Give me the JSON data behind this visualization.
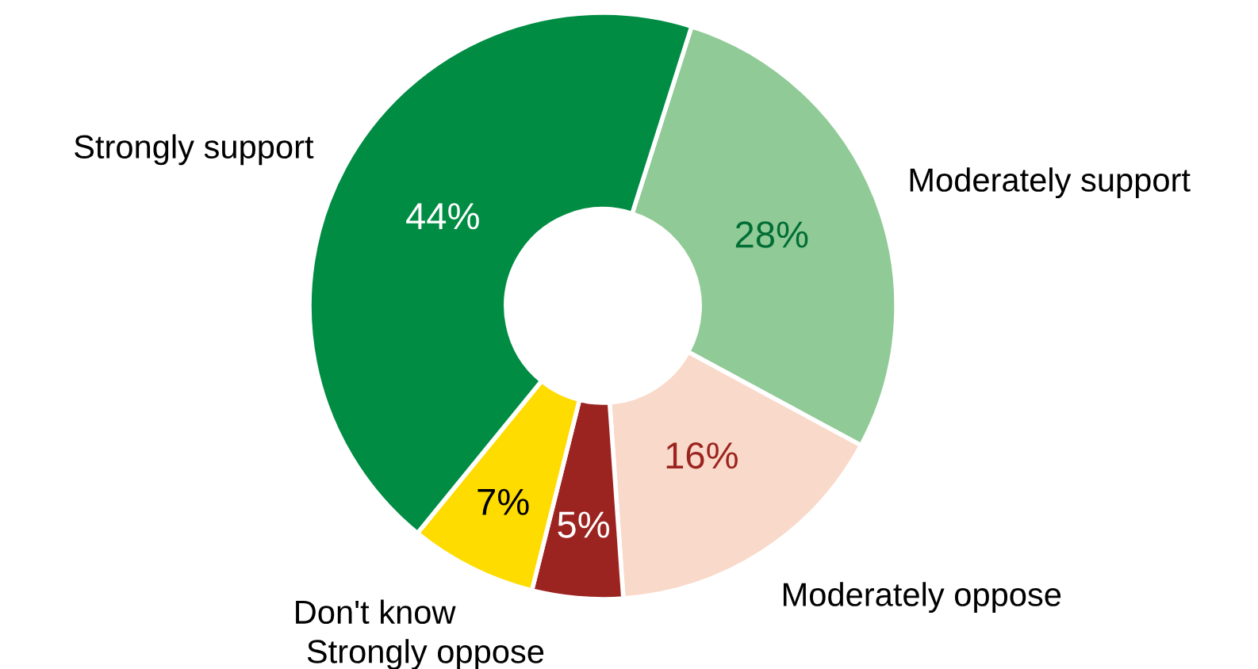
{
  "chart_data": {
    "type": "donut",
    "categories": [
      "Moderately support",
      "Moderately oppose",
      "Strongly oppose",
      "Don't know",
      "Strongly support"
    ],
    "values": [
      28,
      16,
      5,
      7,
      44
    ],
    "colors": [
      "#90ca96",
      "#f9d9c9",
      "#9c2420",
      "#ffdc00",
      "#008c43"
    ],
    "value_labels": [
      "28%",
      "16%",
      "5%",
      "7%",
      "44%"
    ],
    "legend": false
  }
}
